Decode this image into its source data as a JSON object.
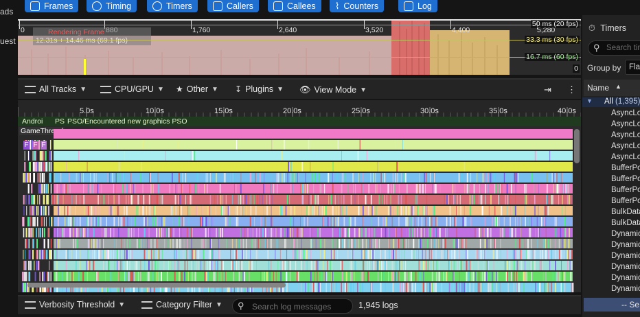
{
  "left_sidebar": {
    "items": [
      "ads",
      "uest"
    ]
  },
  "toolbar": {
    "tabs": [
      {
        "id": "frames",
        "label": "Frames"
      },
      {
        "id": "timing",
        "label": "Timing"
      },
      {
        "id": "timers",
        "label": "Timers"
      },
      {
        "id": "callers",
        "label": "Callers"
      },
      {
        "id": "callees",
        "label": "Callees"
      },
      {
        "id": "counters",
        "label": "Counters"
      },
      {
        "id": "log",
        "label": "Log"
      }
    ]
  },
  "frames_panel": {
    "ruler": [
      "0",
      "880",
      "1,760",
      "2,640",
      "3,520",
      "4,400",
      "5,280"
    ],
    "tooltip_title": "Rendering Frame",
    "tooltip_value": "12.31s + 14.46 ms (69.1 fps)",
    "thresholds": {
      "t50": "50 ms (20 fps)",
      "t33": "33.3 ms (30 fps)",
      "t16": "16.7 ms (60 fps)",
      "zero": "0"
    },
    "colors": {
      "pink": "#d9b6b3",
      "red": "#d86d6a",
      "yellow": "#d6b573",
      "highlight": "#ffff33"
    }
  },
  "timing_toolbar": {
    "all_tracks": "All Tracks",
    "cpu_gpu": "CPU/GPU",
    "other": "Other",
    "plugins": "Plugins",
    "view_mode": "View Mode"
  },
  "timeline": {
    "axis_labels": [
      "5.0s",
      "10.0s",
      "15.0s",
      "20.0s",
      "25.0s",
      "30.0s",
      "35.0s",
      "40.0s"
    ],
    "markers": {
      "android": "Androi",
      "ps": "PS",
      "pso": "PSO/Encountered new graphics PSO"
    },
    "track_name": "GameThread",
    "frame_boxes": [
      "F",
      "F",
      "F"
    ]
  },
  "log_bar": {
    "verbosity": "Verbosity Threshold",
    "category": "Category Filter",
    "search_placeholder": "Search log messages",
    "count": "1,945 logs"
  },
  "timers_panel": {
    "title": "Timers",
    "search_placeholder": "Search timers",
    "group_by_label": "Group by",
    "group_by_value": "Flat",
    "column_name": "Name",
    "root": {
      "label": "All",
      "count": "(1,395)"
    },
    "items": [
      "AsyncLo",
      "AsyncLo",
      "AsyncLo",
      "AsyncLo",
      "AsyncLo",
      "BufferPo",
      "BufferPo",
      "BufferPo",
      "BufferPo",
      "BulkData",
      "BulkData",
      "Dynamic",
      "Dynamic",
      "Dynamic",
      "Dynamic",
      "Dynamic",
      "Dynamic"
    ],
    "footer": "-- Se"
  }
}
